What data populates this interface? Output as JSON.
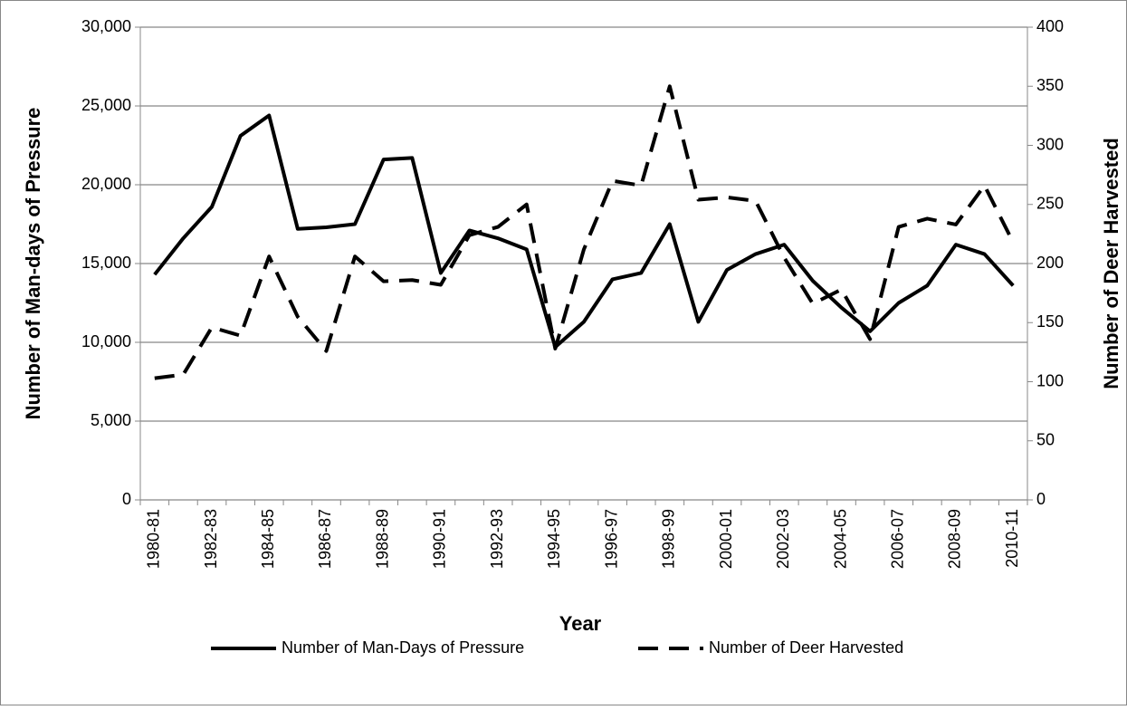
{
  "chart_data": {
    "type": "line",
    "x_label": "Year",
    "y_label": "Number of Man-days of Pressure",
    "y2_label": "Number of Deer  Harvested",
    "categories": [
      "1980-81",
      null,
      "1982-83",
      null,
      "1984-85",
      null,
      "1986-87",
      null,
      "1988-89",
      null,
      "1990-91",
      null,
      "1992-93",
      null,
      "1994-95",
      null,
      "1996-97",
      null,
      "1998-99",
      null,
      "2000-01",
      null,
      "2002-03",
      null,
      "2004-05",
      null,
      "2006-07",
      null,
      "2008-09",
      null,
      "2010-11"
    ],
    "series": [
      {
        "name": "Number of Man-Days of Pressure",
        "color": "#000000",
        "dash": "solid",
        "values": [
          14300,
          16600,
          18600,
          23100,
          24400,
          17200,
          17300,
          17500,
          21600,
          21700,
          14400,
          17100,
          16600,
          15900,
          9700,
          11300,
          14000,
          14400,
          17500,
          11300,
          14600,
          15600,
          16200,
          13900,
          12200,
          10700,
          12500,
          13600,
          16200,
          15600,
          13600
        ]
      },
      {
        "name": "Number of Deer Harvested",
        "color": "#000000",
        "dash": "dashed",
        "axis": "y2",
        "values": [
          103,
          106,
          146,
          139,
          206,
          155,
          126,
          206,
          185,
          186,
          182,
          224,
          231,
          250,
          128,
          212,
          270,
          266,
          350,
          254,
          256,
          253,
          205,
          166,
          178,
          136,
          231,
          238,
          233,
          266,
          218
        ]
      }
    ],
    "ylim": [
      0,
      30000
    ],
    "yticks": [
      0,
      {
        "value": 5000,
        "label": "5,000"
      },
      {
        "value": 10000,
        "label": "10,000"
      },
      {
        "value": 15000,
        "label": "15,000"
      },
      {
        "value": 20000,
        "label": "20,000"
      },
      {
        "value": 25000,
        "label": "25,000"
      },
      {
        "value": 30000,
        "label": "30,000"
      }
    ],
    "y2lim": [
      0,
      400
    ],
    "y2ticks": [
      0,
      50,
      100,
      150,
      200,
      250,
      300,
      350,
      400
    ],
    "grid": true,
    "legend": "bottom"
  }
}
